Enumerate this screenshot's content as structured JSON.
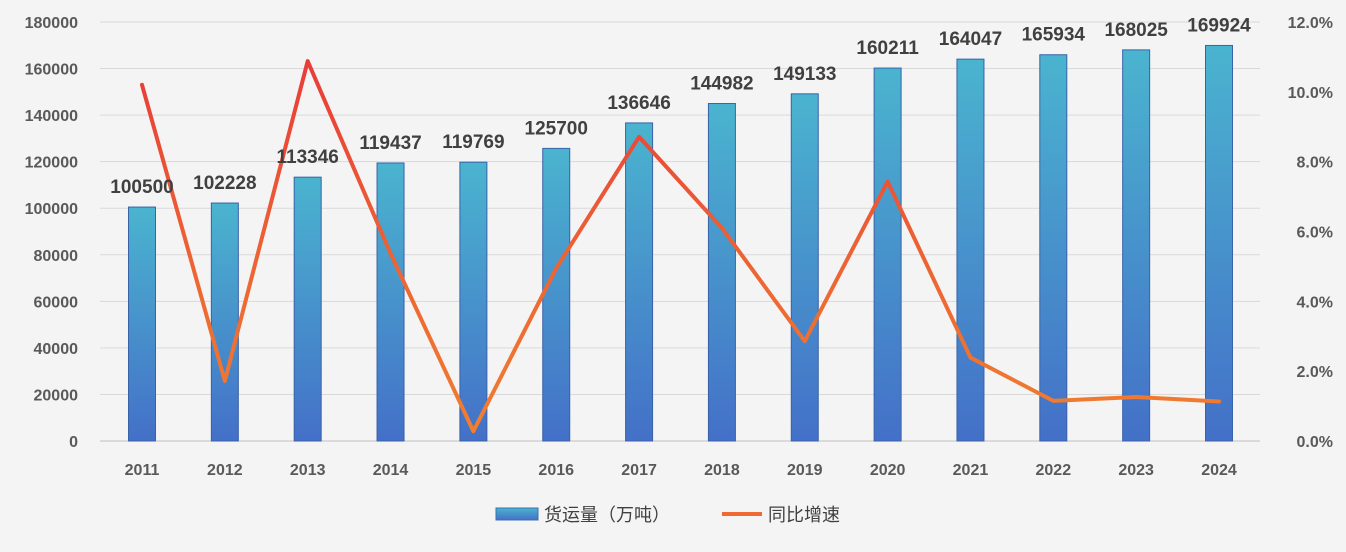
{
  "chart_data": {
    "type": "bar+line",
    "categories": [
      "2011",
      "2012",
      "2013",
      "2014",
      "2015",
      "2016",
      "2017",
      "2018",
      "2019",
      "2020",
      "2021",
      "2022",
      "2023",
      "2024"
    ],
    "series": [
      {
        "name": "货运量（万吨）",
        "type": "bar",
        "axis": "left",
        "values": [
          100500,
          102228,
          113346,
          119437,
          119769,
          125700,
          136646,
          144982,
          149133,
          160211,
          164047,
          165934,
          168025,
          169924
        ]
      },
      {
        "name": "同比增速",
        "type": "line",
        "axis": "right",
        "unit": "%",
        "values": [
          10.2,
          1.72,
          10.88,
          5.37,
          0.28,
          4.95,
          8.71,
          6.1,
          2.86,
          7.43,
          2.39,
          1.15,
          1.26,
          1.13
        ]
      }
    ],
    "left_axis": {
      "min": 0,
      "max": 180000,
      "step": 20000,
      "ticks": [
        "0",
        "20000",
        "40000",
        "60000",
        "80000",
        "100000",
        "120000",
        "140000",
        "160000",
        "180000"
      ]
    },
    "right_axis": {
      "min": 0,
      "max": 12,
      "step": 2,
      "ticks": [
        "0.0%",
        "2.0%",
        "4.0%",
        "6.0%",
        "8.0%",
        "10.0%",
        "12.0%"
      ]
    },
    "grid": true,
    "legend_position": "bottom",
    "colors": {
      "bar_top": "#4ab4cf",
      "bar_bottom": "#4470c8",
      "line_top": "#e8343a",
      "line_bottom": "#f08030",
      "grid": "#d9d9d9",
      "text": "#404040"
    }
  }
}
